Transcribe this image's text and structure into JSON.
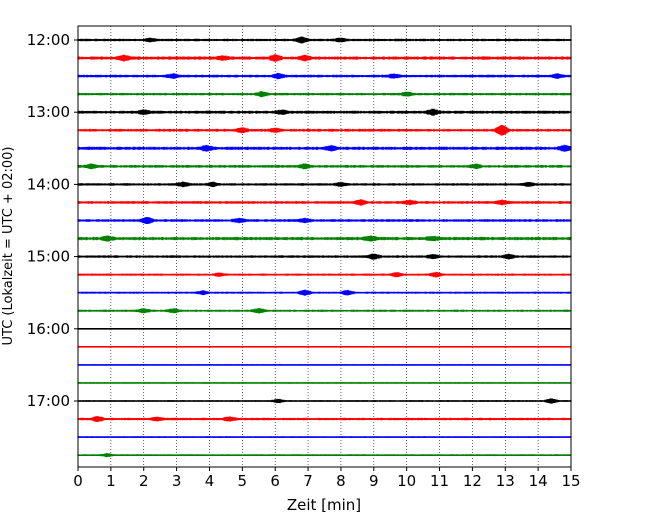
{
  "chart_data": {
    "type": "line",
    "xlabel": "Zeit  [min]",
    "ylabel": "UTC (Lokalzeit = UTC + 02:00)",
    "xlim": [
      0,
      15
    ],
    "x_ticks": [
      "0",
      "1",
      "2",
      "3",
      "4",
      "5",
      "6",
      "7",
      "8",
      "9",
      "10",
      "11",
      "12",
      "13",
      "14",
      "15"
    ],
    "y_hour_labels": [
      "12:00",
      "13:00",
      "14:00",
      "15:00",
      "16:00",
      "17:00"
    ],
    "grid": "vertical dotted at every minute",
    "trace_interval_minutes": 15,
    "first_trace_utc": "12:00",
    "trace_count": 24,
    "colors": [
      "#000000",
      "#ff0000",
      "#0000ff",
      "#008000"
    ],
    "traces": [
      {
        "start": "12:00",
        "color": "#000000",
        "amp": 1.0,
        "events": [
          [
            6.8,
            2.4
          ],
          [
            8.0,
            1.6
          ],
          [
            2.2,
            1.3
          ]
        ]
      },
      {
        "start": "12:15",
        "color": "#ff0000",
        "amp": 1.3,
        "events": [
          [
            1.4,
            2.0
          ],
          [
            6.0,
            2.2
          ],
          [
            6.9,
            2.0
          ],
          [
            4.4,
            1.5
          ]
        ]
      },
      {
        "start": "12:30",
        "color": "#0000ff",
        "amp": 1.1,
        "events": [
          [
            6.1,
            2.0
          ],
          [
            2.9,
            1.6
          ],
          [
            14.6,
            1.6
          ],
          [
            9.6,
            1.4
          ]
        ]
      },
      {
        "start": "12:45",
        "color": "#008000",
        "amp": 1.0,
        "events": [
          [
            5.6,
            2.0
          ],
          [
            10.0,
            1.5
          ]
        ]
      },
      {
        "start": "13:00",
        "color": "#000000",
        "amp": 1.2,
        "events": [
          [
            10.8,
            2.4
          ],
          [
            2.0,
            1.6
          ],
          [
            6.2,
            1.4
          ]
        ]
      },
      {
        "start": "13:15",
        "color": "#ff0000",
        "amp": 1.1,
        "events": [
          [
            12.9,
            4.4
          ],
          [
            5.0,
            1.8
          ],
          [
            6.0,
            1.6
          ]
        ]
      },
      {
        "start": "13:30",
        "color": "#0000ff",
        "amp": 1.3,
        "events": [
          [
            3.9,
            2.0
          ],
          [
            7.7,
            1.6
          ],
          [
            14.8,
            2.0
          ]
        ]
      },
      {
        "start": "13:45",
        "color": "#008000",
        "amp": 1.1,
        "events": [
          [
            0.4,
            1.8
          ],
          [
            6.9,
            1.8
          ],
          [
            12.1,
            1.5
          ]
        ]
      },
      {
        "start": "14:00",
        "color": "#000000",
        "amp": 1.0,
        "events": [
          [
            3.2,
            1.8
          ],
          [
            4.1,
            1.6
          ],
          [
            8.0,
            1.5
          ],
          [
            13.7,
            1.6
          ]
        ]
      },
      {
        "start": "14:15",
        "color": "#ff0000",
        "amp": 1.1,
        "events": [
          [
            8.6,
            2.0
          ],
          [
            10.1,
            1.6
          ],
          [
            12.9,
            1.6
          ]
        ]
      },
      {
        "start": "14:30",
        "color": "#0000ff",
        "amp": 1.1,
        "events": [
          [
            2.1,
            2.6
          ],
          [
            4.9,
            1.6
          ],
          [
            6.9,
            1.6
          ]
        ]
      },
      {
        "start": "14:45",
        "color": "#008000",
        "amp": 1.3,
        "events": [
          [
            0.9,
            1.8
          ],
          [
            8.9,
            1.8
          ],
          [
            10.8,
            1.5
          ]
        ]
      },
      {
        "start": "15:00",
        "color": "#000000",
        "amp": 1.0,
        "events": [
          [
            9.0,
            2.2
          ],
          [
            10.8,
            1.8
          ],
          [
            13.1,
            1.8
          ]
        ]
      },
      {
        "start": "15:15",
        "color": "#ff0000",
        "amp": 0.9,
        "events": [
          [
            10.9,
            1.8
          ],
          [
            9.7,
            1.6
          ],
          [
            4.3,
            1.4
          ]
        ]
      },
      {
        "start": "15:30",
        "color": "#0000ff",
        "amp": 0.8,
        "events": [
          [
            6.9,
            2.4
          ],
          [
            8.2,
            2.0
          ],
          [
            3.8,
            1.5
          ]
        ]
      },
      {
        "start": "15:45",
        "color": "#008000",
        "amp": 0.9,
        "events": [
          [
            2.0,
            1.6
          ],
          [
            2.9,
            1.6
          ],
          [
            5.5,
            1.8
          ]
        ]
      },
      {
        "start": "16:00",
        "color": "#000000",
        "amp": 0.5,
        "events": []
      },
      {
        "start": "16:15",
        "color": "#ff0000",
        "amp": 0.5,
        "events": []
      },
      {
        "start": "16:30",
        "color": "#0000ff",
        "amp": 0.5,
        "events": []
      },
      {
        "start": "16:45",
        "color": "#008000",
        "amp": 0.5,
        "events": []
      },
      {
        "start": "17:00",
        "color": "#000000",
        "amp": 0.7,
        "events": [
          [
            14.4,
            2.0
          ],
          [
            6.1,
            1.5
          ]
        ]
      },
      {
        "start": "17:15",
        "color": "#ff0000",
        "amp": 1.0,
        "events": [
          [
            0.6,
            2.0
          ],
          [
            2.4,
            1.5
          ],
          [
            4.6,
            1.6
          ]
        ]
      },
      {
        "start": "17:30",
        "color": "#0000ff",
        "amp": 0.6,
        "events": []
      },
      {
        "start": "17:45",
        "color": "#008000",
        "amp": 0.7,
        "events": [
          [
            0.9,
            1.3
          ]
        ]
      }
    ]
  }
}
